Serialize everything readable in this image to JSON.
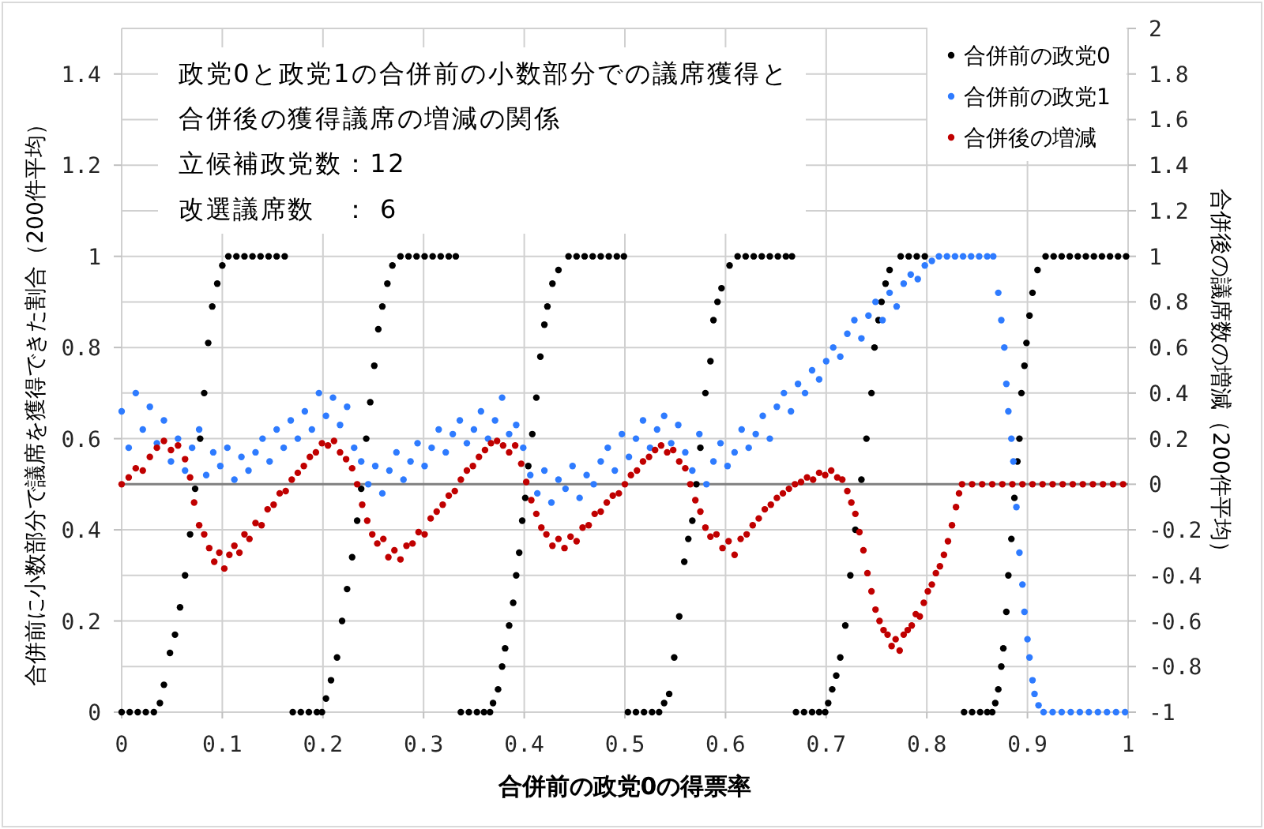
{
  "chart_data": {
    "type": "scatter",
    "title": "政党0と政党1の合併前の小数部分での議席獲得と合併後の獲得議席の増減の関係",
    "annotations": [
      "立候補政党数：12",
      "改選議席数　： 6"
    ],
    "xlabel": "合併前の政党0の得票率",
    "ylabel": "合併前に小数部分で議席を獲得できた割合（200件平均）",
    "y2label": "合併後の議席数の増減（200件平均）",
    "xlim": [
      0,
      1
    ],
    "xticks": [
      0,
      0.1,
      0.2,
      0.3,
      0.4,
      0.5,
      0.6,
      0.7,
      0.8,
      0.9,
      1
    ],
    "ylim": [
      0,
      1.5
    ],
    "yticks": [
      0,
      0.2,
      0.4,
      0.6,
      0.8,
      1,
      1.2,
      1.4
    ],
    "y2lim": [
      -1,
      2
    ],
    "y2ticks": [
      -1,
      -0.8,
      -0.6,
      -0.4,
      -0.2,
      0,
      0.2,
      0.4,
      0.6,
      0.8,
      1,
      1.2,
      1.4,
      1.6,
      1.8,
      2
    ],
    "grid": true,
    "legend": "top right",
    "marker": "circle",
    "ref_lines": [
      {
        "axis": "y2",
        "value": 0,
        "color": "#808080"
      }
    ],
    "series": [
      {
        "name": "合併前の政党0",
        "color": "#000000",
        "x": [
          0,
          0.008,
          0.016,
          0.024,
          0.032,
          0.038,
          0.042,
          0.048,
          0.053,
          0.058,
          0.063,
          0.068,
          0.073,
          0.078,
          0.082,
          0.086,
          0.09,
          0.095,
          0.1,
          0.106,
          0.114,
          0.122,
          0.13,
          0.138,
          0.146,
          0.154,
          0.162,
          0.17,
          0.178,
          0.186,
          0.194,
          0.199,
          0.203,
          0.208,
          0.214,
          0.219,
          0.224,
          0.229,
          0.234,
          0.238,
          0.243,
          0.247,
          0.251,
          0.255,
          0.259,
          0.264,
          0.269,
          0.277,
          0.285,
          0.293,
          0.301,
          0.309,
          0.317,
          0.325,
          0.332,
          0.337,
          0.345,
          0.353,
          0.36,
          0.366,
          0.369,
          0.374,
          0.378,
          0.381,
          0.385,
          0.389,
          0.392,
          0.395,
          0.398,
          0.401,
          0.404,
          0.408,
          0.412,
          0.416,
          0.42,
          0.423,
          0.428,
          0.434,
          0.444,
          0.452,
          0.46,
          0.468,
          0.476,
          0.484,
          0.492,
          0.499,
          0.503,
          0.511,
          0.519,
          0.527,
          0.534,
          0.539,
          0.544,
          0.549,
          0.554,
          0.559,
          0.563,
          0.567,
          0.571,
          0.575,
          0.58,
          0.585,
          0.588,
          0.592,
          0.596,
          0.604,
          0.612,
          0.62,
          0.628,
          0.636,
          0.644,
          0.652,
          0.66,
          0.666,
          0.67,
          0.678,
          0.686,
          0.693,
          0.699,
          0.702,
          0.706,
          0.71,
          0.714,
          0.719,
          0.724,
          0.729,
          0.735,
          0.74,
          0.745,
          0.748,
          0.752,
          0.755,
          0.759,
          0.763,
          0.774,
          0.782,
          0.79,
          0.798,
          0.837,
          0.845,
          0.853,
          0.86,
          0.865,
          0.868,
          0.871,
          0.874,
          0.876,
          0.879,
          0.881,
          0.884,
          0.887,
          0.89,
          0.892,
          0.894,
          0.897,
          0.899,
          0.902,
          0.905,
          0.91,
          0.918,
          0.926,
          0.934,
          0.942,
          0.95,
          0.958,
          0.966,
          0.974,
          0.982,
          0.99,
          0.998
        ],
        "values": [
          0,
          0,
          0,
          0,
          0,
          0.02,
          0.06,
          0.13,
          0.17,
          0.23,
          0.3,
          0.39,
          0.49,
          0.6,
          0.7,
          0.81,
          0.89,
          0.94,
          0.98,
          1,
          1,
          1,
          1,
          1,
          1,
          1,
          1,
          0,
          0,
          0,
          0,
          0,
          0.03,
          0.07,
          0.12,
          0.2,
          0.27,
          0.34,
          0.42,
          0.49,
          0.6,
          0.68,
          0.76,
          0.84,
          0.89,
          0.94,
          0.98,
          1,
          1,
          1,
          1,
          1,
          1,
          1,
          1,
          0,
          0,
          0,
          0,
          0,
          0.02,
          0.05,
          0.1,
          0.14,
          0.19,
          0.24,
          0.3,
          0.35,
          0.42,
          0.47,
          0.54,
          0.61,
          0.69,
          0.78,
          0.85,
          0.89,
          0.94,
          0.97,
          1,
          1,
          1,
          1,
          1,
          1,
          1,
          1,
          0,
          0,
          0,
          0,
          0,
          0.02,
          0.04,
          0.12,
          0.21,
          0.33,
          0.38,
          0.42,
          0.5,
          0.58,
          0.7,
          0.77,
          0.86,
          0.9,
          0.93,
          0.98,
          1,
          1,
          1,
          1,
          1,
          1,
          1,
          1,
          0,
          0,
          0,
          0,
          0,
          0.02,
          0.05,
          0.08,
          0.12,
          0.19,
          0.3,
          0.4,
          0.51,
          0.6,
          0.7,
          0.8,
          0.86,
          0.9,
          0.94,
          0.97,
          1,
          1,
          1,
          1,
          0,
          0,
          0,
          0,
          0,
          0.02,
          0.05,
          0.1,
          0.14,
          0.22,
          0.3,
          0.38,
          0.47,
          0.55,
          0.6,
          0.7,
          0.76,
          0.81,
          0.87,
          0.92,
          0.97,
          1,
          1,
          1,
          1,
          1,
          1,
          1,
          1,
          1,
          1,
          1
        ]
      },
      {
        "name": "合併前の政党1",
        "color": "#2e7bff",
        "x": [
          0,
          0.007,
          0.014,
          0.021,
          0.028,
          0.035,
          0.042,
          0.049,
          0.056,
          0.063,
          0.07,
          0.077,
          0.084,
          0.091,
          0.098,
          0.105,
          0.112,
          0.119,
          0.126,
          0.133,
          0.14,
          0.147,
          0.154,
          0.161,
          0.168,
          0.175,
          0.182,
          0.189,
          0.196,
          0.203,
          0.21,
          0.217,
          0.224,
          0.231,
          0.238,
          0.245,
          0.252,
          0.259,
          0.266,
          0.273,
          0.28,
          0.287,
          0.294,
          0.301,
          0.308,
          0.315,
          0.322,
          0.329,
          0.336,
          0.343,
          0.35,
          0.357,
          0.364,
          0.371,
          0.378,
          0.385,
          0.392,
          0.399,
          0.406,
          0.413,
          0.42,
          0.427,
          0.434,
          0.441,
          0.448,
          0.455,
          0.462,
          0.469,
          0.476,
          0.483,
          0.49,
          0.497,
          0.504,
          0.511,
          0.518,
          0.525,
          0.532,
          0.539,
          0.546,
          0.553,
          0.56,
          0.567,
          0.574,
          0.581,
          0.588,
          0.595,
          0.602,
          0.609,
          0.616,
          0.623,
          0.63,
          0.637,
          0.644,
          0.651,
          0.658,
          0.665,
          0.672,
          0.679,
          0.686,
          0.693,
          0.7,
          0.707,
          0.714,
          0.721,
          0.728,
          0.735,
          0.742,
          0.749,
          0.756,
          0.763,
          0.77,
          0.777,
          0.784,
          0.791,
          0.798,
          0.805,
          0.812,
          0.82,
          0.828,
          0.836,
          0.844,
          0.852,
          0.86,
          0.866,
          0.871,
          0.874,
          0.877,
          0.879,
          0.881,
          0.884,
          0.886,
          0.889,
          0.892,
          0.895,
          0.897,
          0.9,
          0.902,
          0.905,
          0.907,
          0.911,
          0.916,
          0.925,
          0.934,
          0.943,
          0.952,
          0.961,
          0.97,
          0.979,
          0.988,
          0.997
        ],
        "values": [
          0.66,
          0.58,
          0.7,
          0.62,
          0.67,
          0.59,
          0.64,
          0.55,
          0.6,
          0.53,
          0.58,
          0.62,
          0.52,
          0.57,
          0.54,
          0.58,
          0.51,
          0.56,
          0.53,
          0.57,
          0.6,
          0.55,
          0.62,
          0.58,
          0.64,
          0.6,
          0.66,
          0.62,
          0.7,
          0.65,
          0.69,
          0.63,
          0.67,
          0.58,
          0.55,
          0.5,
          0.54,
          0.48,
          0.53,
          0.57,
          0.51,
          0.55,
          0.59,
          0.54,
          0.58,
          0.62,
          0.57,
          0.61,
          0.64,
          0.59,
          0.62,
          0.66,
          0.6,
          0.64,
          0.69,
          0.61,
          0.63,
          0.58,
          0.52,
          0.48,
          0.53,
          0.46,
          0.51,
          0.49,
          0.54,
          0.47,
          0.52,
          0.5,
          0.55,
          0.58,
          0.53,
          0.61,
          0.56,
          0.6,
          0.64,
          0.58,
          0.62,
          0.65,
          0.59,
          0.63,
          0.57,
          0.53,
          0.61,
          0.5,
          0.55,
          0.59,
          0.54,
          0.57,
          0.62,
          0.58,
          0.61,
          0.65,
          0.6,
          0.67,
          0.7,
          0.66,
          0.72,
          0.7,
          0.75,
          0.73,
          0.77,
          0.8,
          0.78,
          0.83,
          0.86,
          0.82,
          0.87,
          0.9,
          0.86,
          0.92,
          0.89,
          0.94,
          0.96,
          0.95,
          0.98,
          0.99,
          1,
          1,
          1,
          1,
          1,
          1,
          1,
          1,
          0.92,
          0.86,
          0.8,
          0.72,
          0.66,
          0.6,
          0.55,
          0.45,
          0.35,
          0.28,
          0.22,
          0.16,
          0.12,
          0.07,
          0.04,
          0.015,
          0,
          0,
          0,
          0,
          0,
          0,
          0,
          0,
          0,
          0
        ]
      },
      {
        "name": "合併後の増減",
        "color": "#c00000",
        "axis": "y2",
        "x": [
          0,
          0.007,
          0.014,
          0.021,
          0.028,
          0.035,
          0.042,
          0.049,
          0.056,
          0.063,
          0.068,
          0.072,
          0.077,
          0.082,
          0.087,
          0.092,
          0.097,
          0.102,
          0.107,
          0.112,
          0.117,
          0.122,
          0.127,
          0.133,
          0.139,
          0.145,
          0.151,
          0.157,
          0.163,
          0.169,
          0.175,
          0.181,
          0.187,
          0.193,
          0.199,
          0.205,
          0.211,
          0.217,
          0.223,
          0.229,
          0.234,
          0.239,
          0.244,
          0.249,
          0.254,
          0.26,
          0.265,
          0.271,
          0.277,
          0.283,
          0.289,
          0.295,
          0.301,
          0.307,
          0.313,
          0.319,
          0.325,
          0.331,
          0.337,
          0.343,
          0.349,
          0.355,
          0.361,
          0.367,
          0.373,
          0.379,
          0.385,
          0.391,
          0.397,
          0.402,
          0.407,
          0.412,
          0.417,
          0.422,
          0.428,
          0.434,
          0.44,
          0.446,
          0.452,
          0.458,
          0.464,
          0.47,
          0.476,
          0.482,
          0.488,
          0.494,
          0.5,
          0.506,
          0.512,
          0.518,
          0.524,
          0.53,
          0.536,
          0.542,
          0.548,
          0.554,
          0.56,
          0.565,
          0.57,
          0.575,
          0.58,
          0.585,
          0.591,
          0.597,
          0.603,
          0.609,
          0.615,
          0.621,
          0.627,
          0.633,
          0.639,
          0.645,
          0.651,
          0.657,
          0.663,
          0.669,
          0.675,
          0.681,
          0.687,
          0.693,
          0.699,
          0.705,
          0.711,
          0.716,
          0.721,
          0.725,
          0.729,
          0.733,
          0.737,
          0.741,
          0.745,
          0.749,
          0.753,
          0.757,
          0.761,
          0.765,
          0.769,
          0.773,
          0.777,
          0.781,
          0.785,
          0.789,
          0.793,
          0.797,
          0.801,
          0.805,
          0.809,
          0.813,
          0.817,
          0.821,
          0.825,
          0.829,
          0.832,
          0.835,
          0.845,
          0.855,
          0.865,
          0.875,
          0.885,
          0.895,
          0.905,
          0.915,
          0.925,
          0.935,
          0.945,
          0.955,
          0.965,
          0.975,
          0.985,
          0.995
        ],
        "values": [
          0,
          0.03,
          0.07,
          0.06,
          0.12,
          0.16,
          0.19,
          0.15,
          0.17,
          0.11,
          0.03,
          -0.08,
          -0.18,
          -0.22,
          -0.28,
          -0.34,
          -0.3,
          -0.37,
          -0.31,
          -0.27,
          -0.3,
          -0.22,
          -0.24,
          -0.17,
          -0.18,
          -0.11,
          -0.09,
          -0.04,
          -0.03,
          0.02,
          0.05,
          0.08,
          0.12,
          0.14,
          0.18,
          0.17,
          0.19,
          0.14,
          0.11,
          0.07,
          0,
          -0.09,
          -0.16,
          -0.22,
          -0.26,
          -0.24,
          -0.32,
          -0.29,
          -0.33,
          -0.27,
          -0.26,
          -0.21,
          -0.22,
          -0.15,
          -0.12,
          -0.09,
          -0.05,
          -0.03,
          0.02,
          0.06,
          0.08,
          0.12,
          0.15,
          0.18,
          0.19,
          0.17,
          0.14,
          0.17,
          0.09,
          0.01,
          -0.07,
          -0.13,
          -0.19,
          -0.22,
          -0.27,
          -0.24,
          -0.28,
          -0.23,
          -0.25,
          -0.19,
          -0.18,
          -0.13,
          -0.12,
          -0.08,
          -0.05,
          -0.04,
          0,
          0.04,
          0.06,
          0.1,
          0.12,
          0.15,
          0.17,
          0.14,
          0.15,
          0.1,
          0.07,
          0,
          -0.07,
          -0.12,
          -0.19,
          -0.23,
          -0.22,
          -0.28,
          -0.25,
          -0.31,
          -0.24,
          -0.22,
          -0.18,
          -0.15,
          -0.11,
          -0.09,
          -0.06,
          -0.04,
          -0.02,
          0,
          0.01,
          0.03,
          0.02,
          0.05,
          0.04,
          0.06,
          0.03,
          0.02,
          -0.03,
          -0.08,
          -0.13,
          -0.21,
          -0.29,
          -0.39,
          -0.47,
          -0.55,
          -0.6,
          -0.64,
          -0.66,
          -0.71,
          -0.68,
          -0.73,
          -0.66,
          -0.64,
          -0.62,
          -0.57,
          -0.58,
          -0.52,
          -0.47,
          -0.44,
          -0.39,
          -0.36,
          -0.31,
          -0.25,
          -0.18,
          -0.1,
          -0.04,
          0,
          0,
          0,
          0,
          0,
          0,
          0,
          0,
          0,
          0,
          0,
          0,
          0,
          0,
          0,
          0,
          0
        ]
      }
    ]
  }
}
